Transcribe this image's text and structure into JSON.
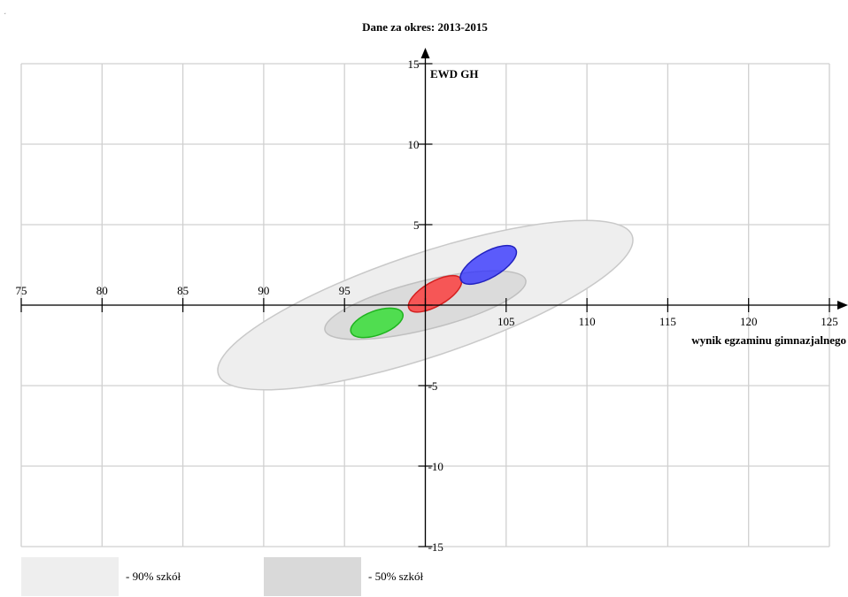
{
  "chart_data": {
    "type": "scatter",
    "title": "Dane za okres: 2013-2015",
    "xlabel": "wynik egzaminu gimnazjalnego",
    "ylabel": "EWD GH",
    "xlim": [
      75,
      125
    ],
    "ylim": [
      -15,
      15
    ],
    "x_ticks": [
      75,
      80,
      85,
      90,
      95,
      100,
      105,
      110,
      115,
      120,
      125
    ],
    "x_tick_labels": [
      "75",
      "80",
      "85",
      "90",
      "95",
      "",
      "105",
      "110",
      "115",
      "120",
      "125"
    ],
    "y_ticks": [
      -15,
      -10,
      -5,
      0,
      5,
      10,
      15
    ],
    "y_tick_labels": [
      "-15",
      "-10",
      "-5",
      "",
      "5",
      "10",
      "15"
    ],
    "grid": true,
    "ellipses": [
      {
        "key": "band-90",
        "cx": 100,
        "cy": 0,
        "rx": 13.5,
        "ry": 3.2,
        "angle_deg": -18.5,
        "color": "#eeeeee",
        "stroke": "#c9c9c9",
        "opacity": 1
      },
      {
        "key": "band-50",
        "cx": 100,
        "cy": 0,
        "rx": 6.4,
        "ry": 1.5,
        "angle_deg": -14,
        "color": "#d6d6d6",
        "stroke": "#c0c0c0",
        "opacity": 0.8
      },
      {
        "key": "green",
        "cx": 97,
        "cy": -1.1,
        "rx": 1.7,
        "ry": 0.75,
        "angle_deg": -20,
        "color": "#22dd22",
        "stroke": "#1fb31f",
        "opacity": 0.75
      },
      {
        "key": "red",
        "cx": 100.6,
        "cy": 0.7,
        "rx": 1.85,
        "ry": 0.75,
        "angle_deg": -30,
        "color": "#ff2a2a",
        "stroke": "#d42020",
        "opacity": 0.75
      },
      {
        "key": "blue",
        "cx": 103.9,
        "cy": 2.5,
        "rx": 1.95,
        "ry": 0.8,
        "angle_deg": -30,
        "color": "#2a2aff",
        "stroke": "#2222c0",
        "opacity": 0.75
      }
    ],
    "legend": [
      {
        "label": "- 90% szkół",
        "color": "#eeeeee"
      },
      {
        "label": "- 50% szkół",
        "color": "#d9d9d9"
      }
    ]
  },
  "corner_mark": "˼"
}
